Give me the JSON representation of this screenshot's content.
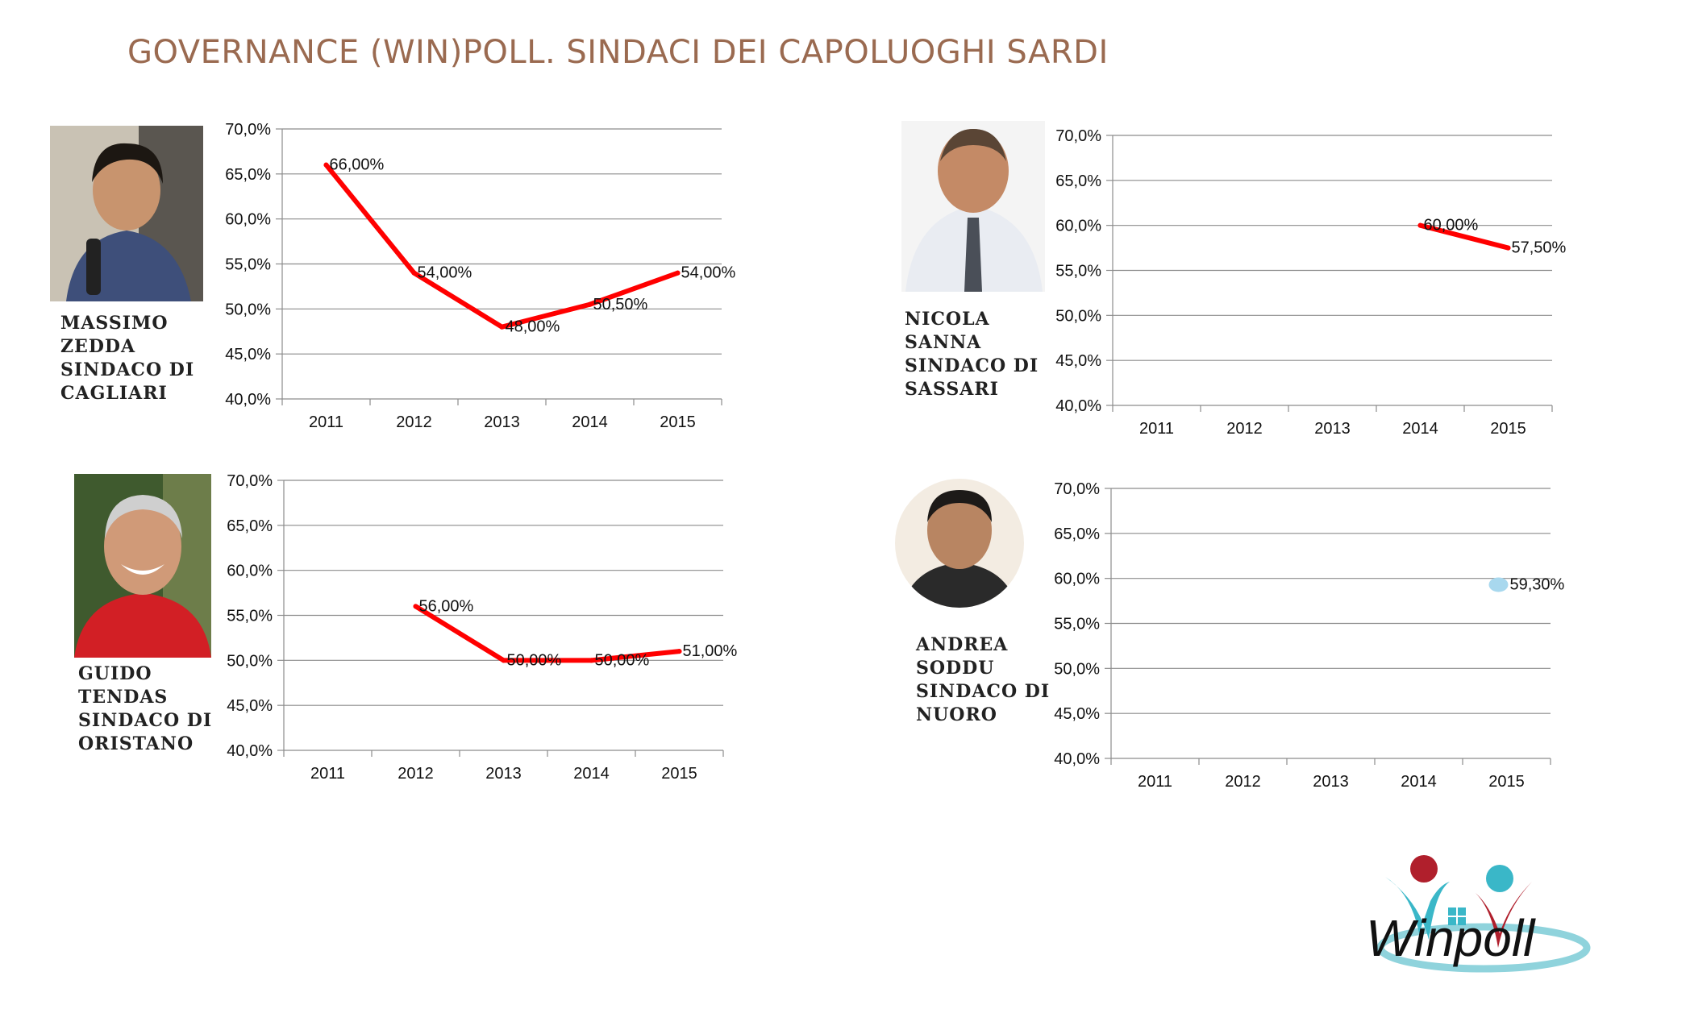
{
  "title": "GOVERNANCE (WIN)POLL. SINDACI DEI CAPOLUOGHI SARDI",
  "mayors": [
    {
      "caption": "MASSIMO\nZEDDA\nSINDACO DI\nCAGLIARI"
    },
    {
      "caption": "NICOLA\nSANNA\nSINDACO DI\nSASSARI"
    },
    {
      "caption": "GUIDO\nTENDAS\nSINDACO DI\nORISTANO"
    },
    {
      "caption": "ANDREA\nSODDU\nSINDACO DI\nNUORO"
    }
  ],
  "logo": {
    "text": "Winpoll",
    "colors": {
      "red": "#b01f2c",
      "teal": "#3ab7c8",
      "ring": "#8fd3dc"
    }
  },
  "chart_data": [
    {
      "type": "line",
      "categories": [
        "2011",
        "2012",
        "2013",
        "2014",
        "2015"
      ],
      "y_ticks": [
        "40,0%",
        "45,0%",
        "50,0%",
        "55,0%",
        "60,0%",
        "65,0%",
        "70,0%"
      ],
      "ylim": [
        40,
        70
      ],
      "grid": true,
      "color": "#ff0000",
      "values": [
        66,
        54,
        48,
        50.5,
        54
      ],
      "labels": [
        "66,00%",
        "54,00%",
        "48,00%",
        "50,50%",
        "54,00%"
      ]
    },
    {
      "type": "line",
      "categories": [
        "2011",
        "2012",
        "2013",
        "2014",
        "2015"
      ],
      "y_ticks": [
        "40,0%",
        "45,0%",
        "50,0%",
        "55,0%",
        "60,0%",
        "65,0%",
        "70,0%"
      ],
      "ylim": [
        40,
        70
      ],
      "grid": true,
      "color": "#ff0000",
      "values": [
        null,
        null,
        null,
        60,
        57.5
      ],
      "labels": [
        "",
        "",
        "",
        "60,00%",
        "57,50%"
      ]
    },
    {
      "type": "line",
      "categories": [
        "2011",
        "2012",
        "2013",
        "2014",
        "2015"
      ],
      "y_ticks": [
        "40,0%",
        "45,0%",
        "50,0%",
        "55,0%",
        "60,0%",
        "65,0%",
        "70,0%"
      ],
      "ylim": [
        40,
        70
      ],
      "grid": true,
      "color": "#ff0000",
      "values": [
        null,
        56,
        50,
        50,
        51
      ],
      "labels": [
        "",
        "56,00%",
        "50,00%",
        "50,00%",
        "51,00%"
      ]
    },
    {
      "type": "scatter",
      "categories": [
        "2011",
        "2012",
        "2013",
        "2014",
        "2015"
      ],
      "y_ticks": [
        "40,0%",
        "45,0%",
        "50,0%",
        "55,0%",
        "60,0%",
        "65,0%",
        "70,0%"
      ],
      "ylim": [
        40,
        70
      ],
      "grid": true,
      "color": "#a8d8ee",
      "values": [
        null,
        null,
        null,
        null,
        59.3
      ],
      "labels": [
        "",
        "",
        "",
        "",
        "59,30%"
      ]
    }
  ]
}
